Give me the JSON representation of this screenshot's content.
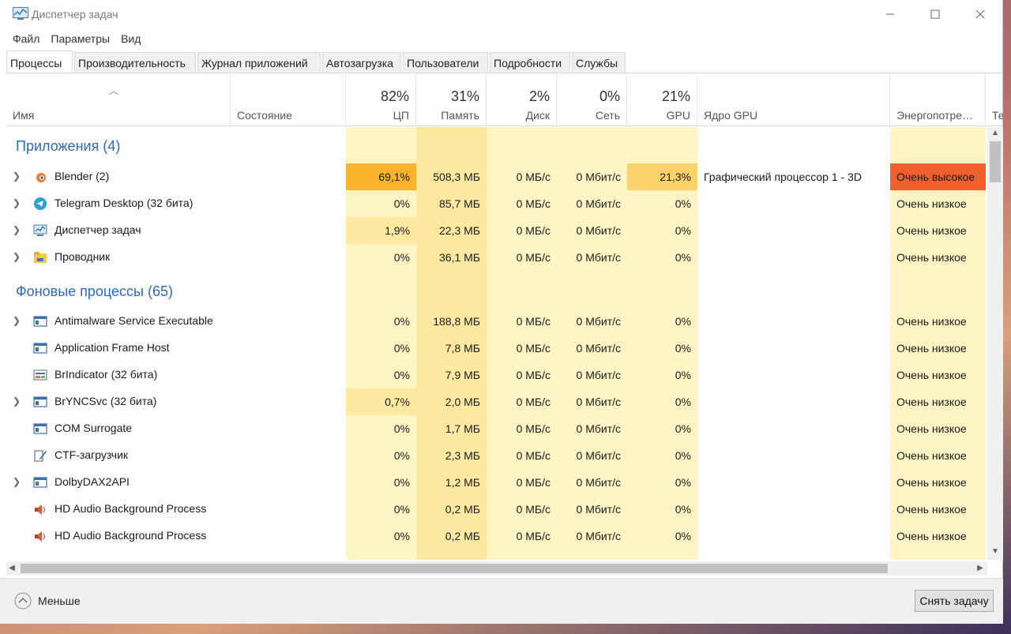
{
  "window": {
    "title": "Диспетчер задач"
  },
  "menu": [
    "Файл",
    "Параметры",
    "Вид"
  ],
  "tabs": [
    "Процессы",
    "Производительность",
    "Журнал приложений",
    "Автозагрузка",
    "Пользователи",
    "Подробности",
    "Службы"
  ],
  "active_tab": "Процессы",
  "columns": {
    "name": "Имя",
    "status": "Состояние",
    "cpu": {
      "pct": "82%",
      "label": "ЦП"
    },
    "mem": {
      "pct": "31%",
      "label": "Память"
    },
    "disk": {
      "pct": "2%",
      "label": "Диск"
    },
    "net": {
      "pct": "0%",
      "label": "Сеть"
    },
    "gpu": {
      "pct": "21%",
      "label": "GPU"
    },
    "gpu_engine": "Ядро GPU",
    "power": "Энергопотре…",
    "trend": "Те"
  },
  "groups": {
    "apps": "Приложения (4)",
    "background": "Фоновые процессы (65)"
  },
  "apps": [
    {
      "name": "Blender (2)",
      "icon": "blender-icon",
      "expand": true,
      "cpu": "69,1%",
      "mem": "508,3 МБ",
      "disk": "0 МБ/с",
      "net": "0 Мбит/с",
      "gpu": "21,3%",
      "gpu_engine": "Графический процессор 1 - 3D",
      "power": "Очень высокое"
    },
    {
      "name": "Telegram Desktop (32 бита)",
      "icon": "telegram-icon",
      "expand": true,
      "cpu": "0%",
      "mem": "85,7 МБ",
      "disk": "0 МБ/с",
      "net": "0 Мбит/с",
      "gpu": "0%",
      "gpu_engine": "",
      "power": "Очень низкое"
    },
    {
      "name": "Диспетчер задач",
      "icon": "task-manager-icon",
      "expand": true,
      "cpu": "1,9%",
      "mem": "22,3 МБ",
      "disk": "0 МБ/с",
      "net": "0 Мбит/с",
      "gpu": "0%",
      "gpu_engine": "",
      "power": "Очень низкое"
    },
    {
      "name": "Проводник",
      "icon": "explorer-folder-icon",
      "expand": true,
      "cpu": "0%",
      "mem": "36,1 МБ",
      "disk": "0 МБ/с",
      "net": "0 Мбит/с",
      "gpu": "0%",
      "gpu_engine": "",
      "power": "Очень низкое"
    }
  ],
  "background": [
    {
      "name": "Antimalware Service Executable",
      "icon": "service-window-icon",
      "expand": true,
      "cpu": "0%",
      "mem": "188,8 МБ",
      "disk": "0 МБ/с",
      "net": "0 Мбит/с",
      "gpu": "0%",
      "power": "Очень низкое"
    },
    {
      "name": "Application Frame Host",
      "icon": "service-window-icon",
      "expand": false,
      "cpu": "0%",
      "mem": "7,8 МБ",
      "disk": "0 МБ/с",
      "net": "0 Мбит/с",
      "gpu": "0%",
      "power": "Очень низкое"
    },
    {
      "name": "BrIndicator (32 бита)",
      "icon": "brindicator-icon",
      "expand": false,
      "cpu": "0%",
      "mem": "7,9 МБ",
      "disk": "0 МБ/с",
      "net": "0 Мбит/с",
      "gpu": "0%",
      "power": "Очень низкое"
    },
    {
      "name": "BrYNCSvc (32 бита)",
      "icon": "service-window-icon",
      "expand": true,
      "cpu": "0,7%",
      "mem": "2,0 МБ",
      "disk": "0 МБ/с",
      "net": "0 Мбит/с",
      "gpu": "0%",
      "power": "Очень низкое"
    },
    {
      "name": "COM Surrogate",
      "icon": "service-window-icon",
      "expand": false,
      "cpu": "0%",
      "mem": "1,7 МБ",
      "disk": "0 МБ/с",
      "net": "0 Мбит/с",
      "gpu": "0%",
      "power": "Очень низкое"
    },
    {
      "name": "CTF-загрузчик",
      "icon": "ctf-pen-icon",
      "expand": false,
      "cpu": "0%",
      "mem": "2,3 МБ",
      "disk": "0 МБ/с",
      "net": "0 Мбит/с",
      "gpu": "0%",
      "power": "Очень низкое"
    },
    {
      "name": "DolbyDAX2API",
      "icon": "service-window-icon",
      "expand": true,
      "cpu": "0%",
      "mem": "1,2 МБ",
      "disk": "0 МБ/с",
      "net": "0 Мбит/с",
      "gpu": "0%",
      "power": "Очень низкое"
    },
    {
      "name": "HD Audio Background Process",
      "icon": "speaker-icon",
      "expand": false,
      "cpu": "0%",
      "mem": "0,2 МБ",
      "disk": "0 МБ/с",
      "net": "0 Мбит/с",
      "gpu": "0%",
      "power": "Очень низкое"
    },
    {
      "name": "HD Audio Background Process",
      "icon": "speaker-icon",
      "expand": false,
      "cpu": "0%",
      "mem": "0,2 МБ",
      "disk": "0 МБ/с",
      "net": "0 Мбит/с",
      "gpu": "0%",
      "power": "Очень низкое"
    }
  ],
  "footer": {
    "fewer_label": "Меньше",
    "end_task": "Снять задачу"
  },
  "colors": {
    "heat_low": "#fff4c4",
    "heat_mid": "#ffe8a0",
    "heat_cpu_high": "#f8b32b",
    "heat_gpu_high": "#fcd169",
    "power_very_high": "#f0602c",
    "group_text": "#2b6cb8"
  }
}
